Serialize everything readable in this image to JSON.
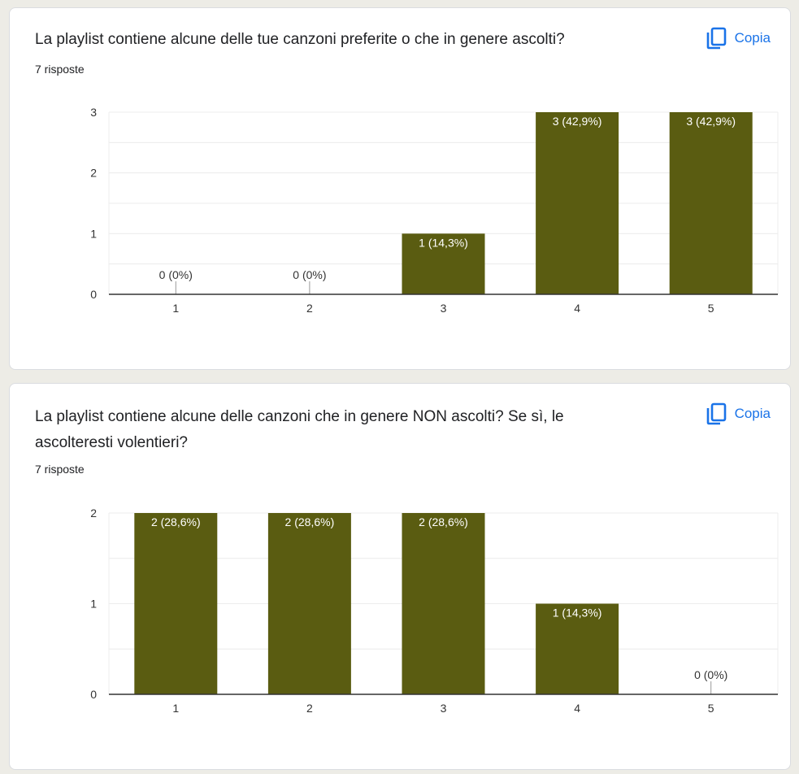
{
  "colors": {
    "bar": "#5a5c11",
    "accent": "#1a73e8",
    "grid": "#ececec",
    "axis": "#333333",
    "text": "#202124"
  },
  "cards": [
    {
      "question": "La playlist contiene alcune delle tue canzoni preferite o che in genere ascolti?",
      "responses": "7 risposte",
      "copy_label": "Copia",
      "copy_icon": "copy-icon"
    },
    {
      "question": "La playlist contiene alcune delle canzoni che in genere NON ascolti? Se sì, le ascolteresti volentieri?",
      "responses": "7 risposte",
      "copy_label": "Copia",
      "copy_icon": "copy-icon"
    }
  ],
  "chart_data": [
    {
      "type": "bar",
      "categories": [
        "1",
        "2",
        "3",
        "4",
        "5"
      ],
      "values": [
        0,
        0,
        1,
        3,
        3
      ],
      "labels": [
        "0 (0%)",
        "0 (0%)",
        "1 (14,3%)",
        "3 (42,9%)",
        "3 (42,9%)"
      ],
      "yticks": [
        0,
        1,
        2,
        3
      ],
      "ylim": [
        0,
        3
      ],
      "grid": true,
      "legend": "none"
    },
    {
      "type": "bar",
      "categories": [
        "1",
        "2",
        "3",
        "4",
        "5"
      ],
      "values": [
        2,
        2,
        2,
        1,
        0
      ],
      "labels": [
        "2 (28,6%)",
        "2 (28,6%)",
        "2 (28,6%)",
        "1 (14,3%)",
        "0 (0%)"
      ],
      "yticks": [
        0,
        1,
        2
      ],
      "ylim": [
        0,
        2
      ],
      "grid": true,
      "legend": "none"
    }
  ]
}
